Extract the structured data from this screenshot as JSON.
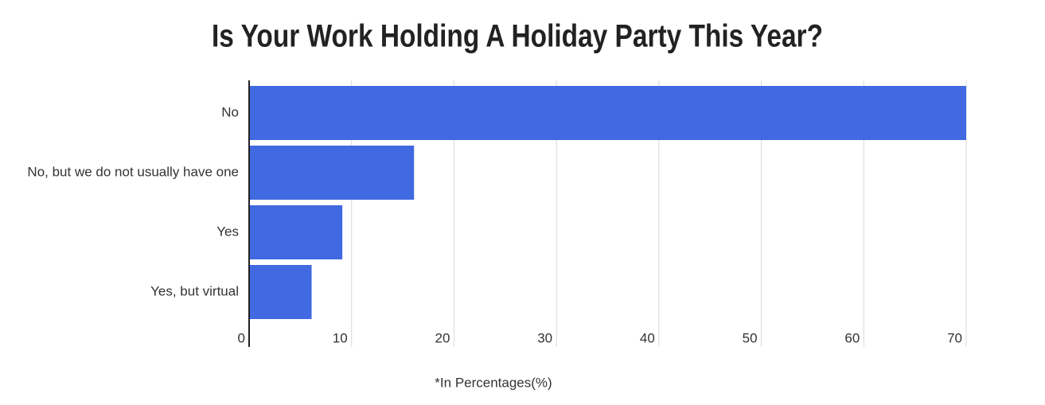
{
  "chart_data": {
    "type": "bar",
    "orientation": "horizontal",
    "title": "Is Your Work Holding A Holiday Party This Year?",
    "xlabel": "*In Percentages(%)",
    "categories": [
      "No",
      "No, but we do not usually have one",
      "Yes",
      "Yes, but virtual"
    ],
    "values": [
      70,
      16.1,
      9.1,
      6.1
    ],
    "color": "#4169e1",
    "xlim": [
      0,
      70
    ],
    "xticks": [
      0,
      10,
      20,
      30,
      40,
      50,
      60,
      70
    ],
    "grid": true
  }
}
